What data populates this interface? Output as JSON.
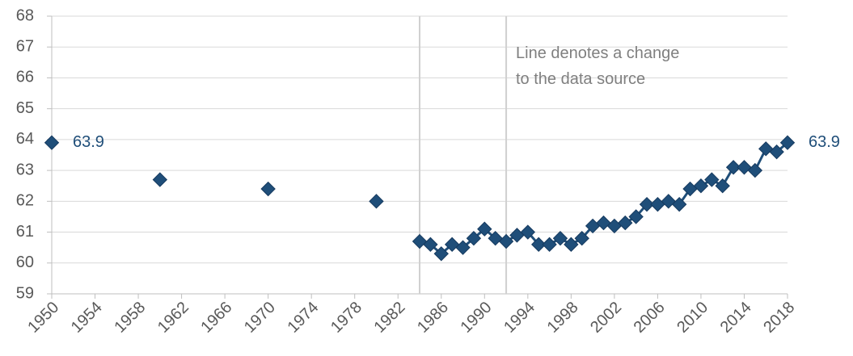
{
  "chart_data": {
    "type": "line",
    "annotation": "Line denotes a change to the data source",
    "x": [
      1950,
      1951,
      1952,
      1953,
      1954,
      1955,
      1956,
      1957,
      1958,
      1959,
      1960,
      1961,
      1962,
      1963,
      1964,
      1965,
      1966,
      1967,
      1968,
      1969,
      1970,
      1971,
      1972,
      1973,
      1974,
      1975,
      1976,
      1977,
      1978,
      1979,
      1980,
      1981,
      1982,
      1983,
      1984,
      1985,
      1986,
      1987,
      1988,
      1989,
      1990,
      1991,
      1992,
      1993,
      1994,
      1995,
      1996,
      1997,
      1998,
      1999,
      2000,
      2001,
      2002,
      2003,
      2004,
      2005,
      2006,
      2007,
      2008,
      2009,
      2010,
      2011,
      2012,
      2013,
      2014,
      2015,
      2016,
      2017,
      2018
    ],
    "values": [
      63.9,
      null,
      null,
      null,
      null,
      null,
      null,
      null,
      null,
      null,
      62.7,
      null,
      null,
      null,
      null,
      null,
      null,
      null,
      null,
      null,
      62.4,
      null,
      null,
      null,
      null,
      null,
      null,
      null,
      null,
      null,
      62.0,
      null,
      null,
      null,
      60.7,
      60.6,
      60.3,
      60.6,
      60.5,
      60.8,
      61.1,
      60.8,
      60.7,
      60.9,
      61.0,
      60.6,
      60.6,
      60.8,
      60.6,
      60.8,
      61.2,
      61.3,
      61.2,
      61.3,
      61.5,
      61.9,
      61.9,
      62.0,
      61.9,
      62.4,
      62.5,
      62.7,
      62.5,
      63.1,
      63.1,
      63.0,
      63.7,
      63.6,
      63.9
    ],
    "color": "#1f4e79",
    "data_labels": "first_last",
    "vlines": [
      1984,
      1992
    ],
    "xlim": [
      1950,
      2018
    ],
    "xticks": [
      1950,
      1954,
      1958,
      1962,
      1966,
      1970,
      1974,
      1978,
      1982,
      1986,
      1990,
      1994,
      1998,
      2002,
      2006,
      2010,
      2014,
      2018
    ],
    "ylim": [
      59,
      68
    ],
    "yticks": [
      59,
      60,
      61,
      62,
      63,
      64,
      65,
      66,
      67,
      68
    ],
    "grid": true
  }
}
